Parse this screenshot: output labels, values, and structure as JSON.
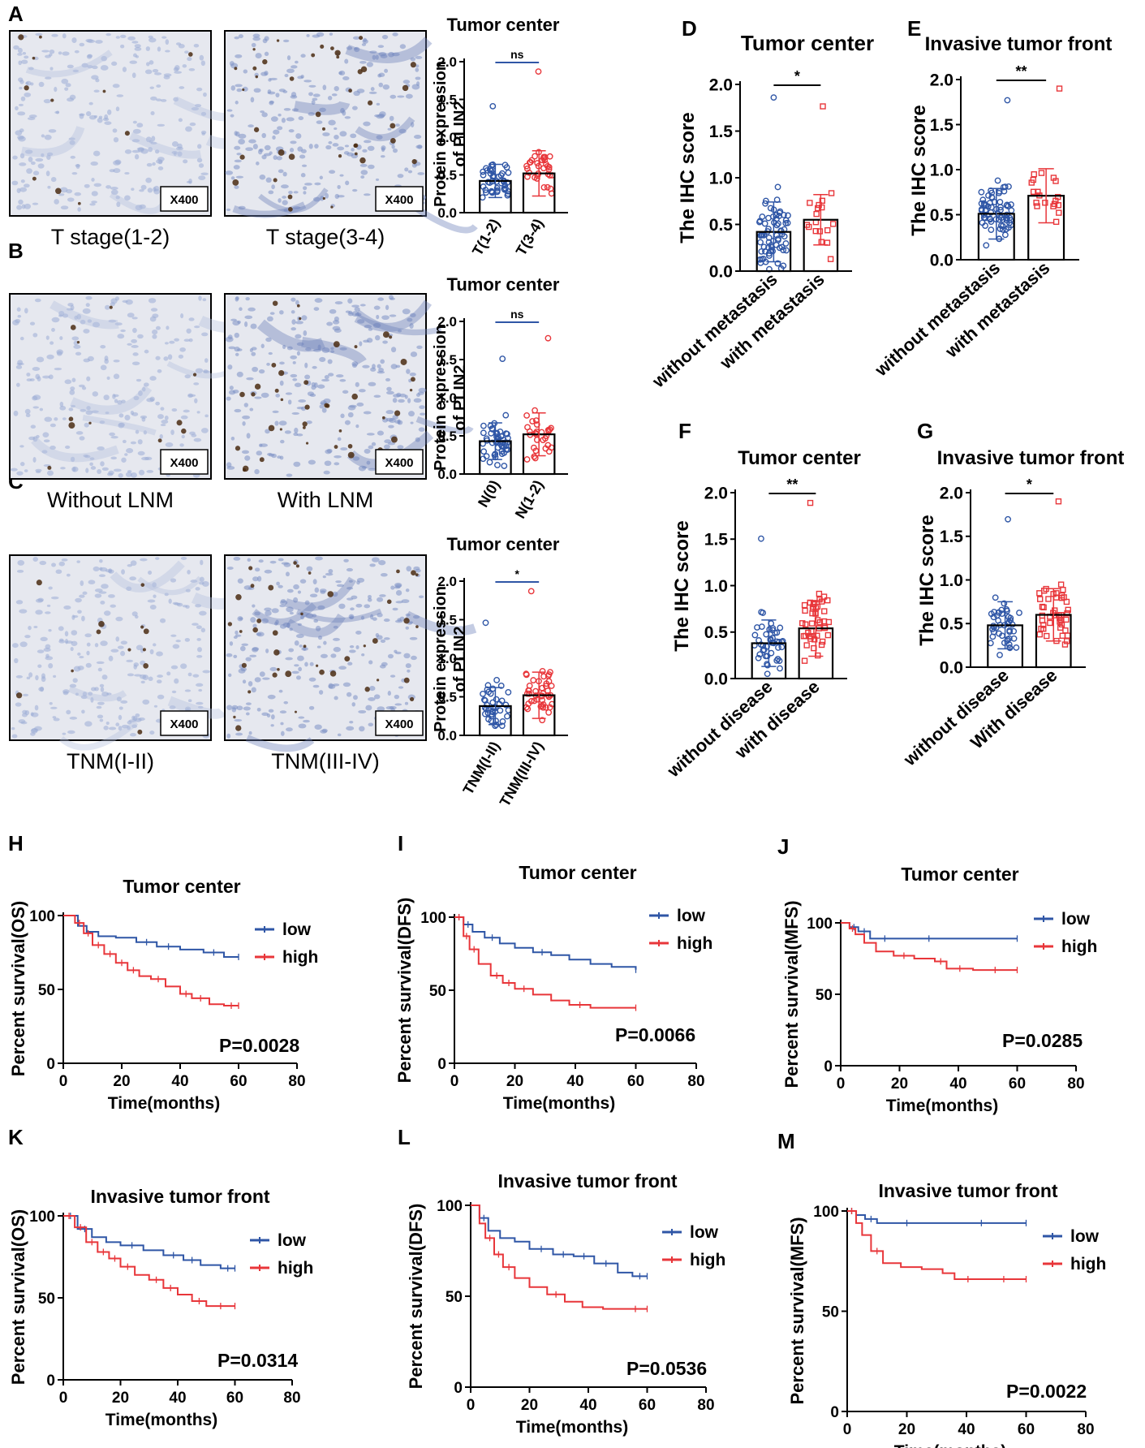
{
  "colors": {
    "blue": "#2f56a6",
    "red": "#e8363a",
    "axis": "#000000",
    "tissue_bg": "#e6e8ef"
  },
  "panel_letters": [
    "A",
    "B",
    "C",
    "D",
    "E",
    "F",
    "G",
    "H",
    "I",
    "J",
    "K",
    "L",
    "M"
  ],
  "micrographs": {
    "A": {
      "left_caption": "T stage(1-2)",
      "right_caption": "T stage(3-4)",
      "magnification": "X400"
    },
    "B": {
      "left_caption": "Without LNM",
      "right_caption": "With LNM",
      "magnification": "X400"
    },
    "C": {
      "left_caption": "TNM(I-II)",
      "right_caption": "TNM(III-IV)",
      "magnification": "X400"
    }
  },
  "chart_data": [
    {
      "id": "A",
      "type": "bar",
      "title": "Tumor center",
      "ylabel": "Protein expression of PLIN2",
      "xlabel": "",
      "categories": [
        "T(1-2)",
        "T(3-4)"
      ],
      "values": [
        0.42,
        0.52
      ],
      "sd": [
        0.22,
        0.3
      ],
      "n": [
        45,
        34
      ],
      "ylim": [
        0,
        2.0
      ],
      "yticks": [
        0.0,
        0.5,
        1.0,
        1.5,
        2.0
      ],
      "significance": "ns"
    },
    {
      "id": "B",
      "type": "bar",
      "title": "Tumor center",
      "ylabel": "Protein expression of PLIN2",
      "xlabel": "",
      "categories": [
        "N(0)",
        "N(1-2)"
      ],
      "values": [
        0.43,
        0.52
      ],
      "sd": [
        0.24,
        0.28
      ],
      "n": [
        50,
        30
      ],
      "ylim": [
        0,
        2.0
      ],
      "yticks": [
        0.0,
        0.5,
        1.0,
        1.5,
        2.0
      ],
      "significance": "ns"
    },
    {
      "id": "C",
      "type": "bar",
      "title": "Tumor center",
      "ylabel": "Protein expression of PLIN2",
      "xlabel": "",
      "categories": [
        "TNM(I-II)",
        "TNM(III-IV)"
      ],
      "values": [
        0.38,
        0.52
      ],
      "sd": [
        0.24,
        0.3
      ],
      "n": [
        40,
        45
      ],
      "ylim": [
        0,
        2.0
      ],
      "yticks": [
        0.0,
        0.5,
        1.0,
        1.5,
        2.0
      ],
      "significance": "*"
    },
    {
      "id": "D",
      "type": "bar",
      "title": "Tumor center",
      "ylabel": "The IHC score",
      "xlabel": "",
      "categories": [
        "without metastasis",
        "with metastasis"
      ],
      "values": [
        0.42,
        0.55
      ],
      "sd": [
        0.32,
        0.27
      ],
      "n": [
        70,
        18
      ],
      "ylim": [
        0,
        2.0
      ],
      "yticks": [
        0.0,
        0.5,
        1.0,
        1.5,
        2.0
      ],
      "significance": "*"
    },
    {
      "id": "E",
      "type": "bar",
      "title": "Invasive tumor front",
      "ylabel": "The IHC score",
      "xlabel": "",
      "categories": [
        "without metastasis",
        "with metastasis"
      ],
      "values": [
        0.51,
        0.71
      ],
      "sd": [
        0.28,
        0.3
      ],
      "n": [
        70,
        20
      ],
      "ylim": [
        0,
        2.0
      ],
      "yticks": [
        0.0,
        0.5,
        1.0,
        1.5,
        2.0
      ],
      "significance": "**"
    },
    {
      "id": "F",
      "type": "bar",
      "title": "Tumor center",
      "ylabel": "The IHC score",
      "xlabel": "",
      "categories": [
        "without disease",
        "with disease"
      ],
      "values": [
        0.38,
        0.54
      ],
      "sd": [
        0.25,
        0.3
      ],
      "n": [
        45,
        45
      ],
      "ylim": [
        0,
        2.0
      ],
      "yticks": [
        0.0,
        0.5,
        1.0,
        1.5,
        2.0
      ],
      "significance": "**"
    },
    {
      "id": "G",
      "type": "bar",
      "title": "Invasive tumor front",
      "ylabel": "The IHC score",
      "xlabel": "",
      "categories": [
        "without disease",
        "With disease"
      ],
      "values": [
        0.48,
        0.6
      ],
      "sd": [
        0.27,
        0.3
      ],
      "n": [
        45,
        45
      ],
      "ylim": [
        0,
        2.0
      ],
      "yticks": [
        0.0,
        0.5,
        1.0,
        1.5,
        2.0
      ],
      "significance": "*"
    },
    {
      "id": "H",
      "type": "line",
      "title": "Tumor center",
      "ylabel": "Percent survival(OS)",
      "xlabel": "Time(months)",
      "xlim": [
        0,
        80
      ],
      "ylim": [
        0,
        100
      ],
      "xticks": [
        0,
        20,
        40,
        60,
        80
      ],
      "yticks": [
        0,
        50,
        100
      ],
      "pvalue": "P=0.0028",
      "series": [
        {
          "name": "low",
          "x": [
            0,
            5,
            8,
            12,
            18,
            25,
            32,
            40,
            48,
            55,
            60
          ],
          "y": [
            100,
            93,
            89,
            86,
            85,
            82,
            79,
            77,
            75,
            72,
            72
          ]
        },
        {
          "name": "high",
          "x": [
            0,
            4,
            7,
            10,
            14,
            18,
            22,
            26,
            30,
            35,
            40,
            44,
            50,
            55,
            60
          ],
          "y": [
            100,
            95,
            88,
            80,
            74,
            68,
            63,
            59,
            57,
            52,
            47,
            44,
            40,
            39,
            39
          ]
        }
      ]
    },
    {
      "id": "I",
      "type": "line",
      "title": "Tumor center",
      "ylabel": "Percent survival(DFS)",
      "xlabel": "Time(months)",
      "xlim": [
        0,
        80
      ],
      "ylim": [
        0,
        100
      ],
      "xticks": [
        0,
        20,
        40,
        60,
        80
      ],
      "yticks": [
        0,
        50,
        100
      ],
      "pvalue": "P=0.0066",
      "series": [
        {
          "name": "low",
          "x": [
            0,
            3,
            6,
            10,
            15,
            20,
            26,
            32,
            38,
            45,
            52,
            60
          ],
          "y": [
            100,
            95,
            90,
            86,
            82,
            79,
            76,
            74,
            71,
            68,
            66,
            64
          ]
        },
        {
          "name": "high",
          "x": [
            0,
            3,
            5,
            8,
            12,
            16,
            20,
            26,
            32,
            38,
            45,
            52,
            60
          ],
          "y": [
            100,
            87,
            78,
            68,
            60,
            55,
            51,
            47,
            43,
            40,
            38,
            38,
            38
          ]
        }
      ]
    },
    {
      "id": "J",
      "type": "line",
      "title": "Tumor center",
      "ylabel": "Percent survival(MFS)",
      "xlabel": "Time(months)",
      "xlim": [
        0,
        80
      ],
      "ylim": [
        0,
        100
      ],
      "xticks": [
        0,
        20,
        40,
        60,
        80
      ],
      "yticks": [
        0,
        50,
        100
      ],
      "pvalue": "P=0.0285",
      "series": [
        {
          "name": "low",
          "x": [
            0,
            3,
            6,
            10,
            20,
            40,
            60
          ],
          "y": [
            100,
            97,
            94,
            89,
            89,
            89,
            89
          ]
        },
        {
          "name": "high",
          "x": [
            0,
            3,
            5,
            8,
            12,
            18,
            25,
            32,
            36,
            45,
            60
          ],
          "y": [
            100,
            96,
            92,
            86,
            80,
            77,
            75,
            73,
            68,
            67,
            67
          ]
        }
      ]
    },
    {
      "id": "K",
      "type": "line",
      "title": "Invasive tumor front",
      "ylabel": "Percent survival(OS)",
      "xlabel": "Time(months)",
      "xlim": [
        0,
        80
      ],
      "ylim": [
        0,
        100
      ],
      "xticks": [
        0,
        20,
        40,
        60,
        80
      ],
      "yticks": [
        0,
        50,
        100
      ],
      "pvalue": "P=0.0314",
      "series": [
        {
          "name": "low",
          "x": [
            0,
            5,
            10,
            15,
            20,
            28,
            35,
            42,
            48,
            55,
            60
          ],
          "y": [
            100,
            92,
            87,
            84,
            82,
            79,
            76,
            73,
            70,
            68,
            68
          ]
        },
        {
          "name": "high",
          "x": [
            0,
            4,
            8,
            12,
            16,
            20,
            25,
            30,
            35,
            40,
            45,
            50,
            60
          ],
          "y": [
            100,
            93,
            84,
            78,
            74,
            69,
            64,
            61,
            56,
            52,
            48,
            45,
            45
          ]
        }
      ]
    },
    {
      "id": "L",
      "type": "line",
      "title": "Invasive tumor front",
      "ylabel": "Percent survival(DFS)",
      "xlabel": "Time(months)",
      "xlim": [
        0,
        80
      ],
      "ylim": [
        0,
        100
      ],
      "xticks": [
        0,
        20,
        40,
        60,
        80
      ],
      "yticks": [
        0,
        50,
        100
      ],
      "pvalue": "P=0.0536",
      "series": [
        {
          "name": "low",
          "x": [
            0,
            3,
            6,
            10,
            15,
            20,
            28,
            35,
            42,
            50,
            55,
            60
          ],
          "y": [
            100,
            93,
            86,
            82,
            80,
            76,
            73,
            72,
            68,
            63,
            61,
            61
          ]
        },
        {
          "name": "high",
          "x": [
            0,
            3,
            5,
            8,
            11,
            15,
            20,
            26,
            32,
            38,
            45,
            52,
            60
          ],
          "y": [
            100,
            90,
            82,
            73,
            66,
            60,
            55,
            51,
            47,
            44,
            43,
            43,
            43
          ]
        }
      ]
    },
    {
      "id": "M",
      "type": "line",
      "title": "Invasive tumor front",
      "ylabel": "Percent survival(MFS)",
      "xlabel": "Time(months)",
      "xlim": [
        0,
        80
      ],
      "ylim": [
        0,
        100
      ],
      "xticks": [
        0,
        20,
        40,
        60,
        80
      ],
      "yticks": [
        0,
        50,
        100
      ],
      "pvalue": "P=0.0022",
      "series": [
        {
          "name": "low",
          "x": [
            0,
            3,
            6,
            10,
            30,
            60
          ],
          "y": [
            100,
            98,
            96,
            94,
            94,
            94
          ]
        },
        {
          "name": "high",
          "x": [
            0,
            3,
            5,
            8,
            12,
            18,
            25,
            32,
            36,
            45,
            60
          ],
          "y": [
            100,
            94,
            88,
            80,
            74,
            72,
            71,
            69,
            66,
            66,
            66
          ]
        }
      ]
    }
  ]
}
